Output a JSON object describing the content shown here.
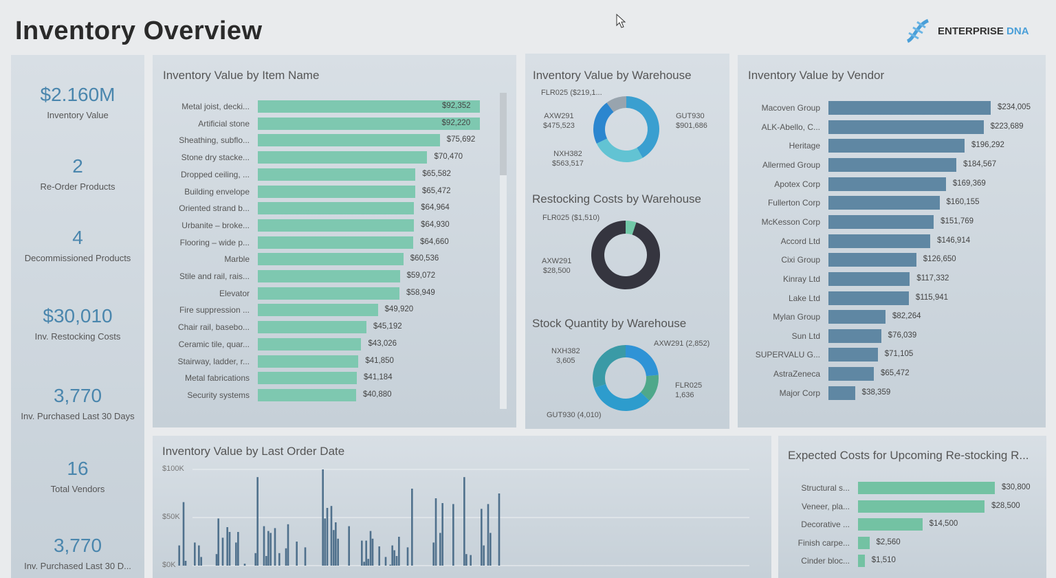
{
  "header": {
    "title": "Inventory Overview",
    "logo_text_1": "ENTERPRISE",
    "logo_text_2": "DNA"
  },
  "kpis": [
    {
      "value": "$2.160M",
      "label": "Inventory Value"
    },
    {
      "value": "2",
      "label": "Re-Order Products"
    },
    {
      "value": "4",
      "label": "Decommissioned Products"
    },
    {
      "value": "$30,010",
      "label": "Inv. Restocking Costs"
    },
    {
      "value": "3,770",
      "label": "Inv. Purchased Last 30 Days"
    },
    {
      "value": "16",
      "label": "Total Vendors"
    },
    {
      "value": "3,770",
      "label": "Inv. Purchased Last 30 D..."
    }
  ],
  "colors": {
    "item_bar": "#7ec8b0",
    "vendor_bar": "#5f87a3",
    "expected_bar": "#73c2a3",
    "date_bar": "#4f708c",
    "kpi_value": "#4a86ad"
  },
  "chart_data": [
    {
      "type": "bar",
      "orientation": "horizontal",
      "title": "Inventory Value by Item Name",
      "categories": [
        "Metal joist, decki...",
        "Artificial stone",
        "Sheathing, subflo...",
        "Stone dry stacke...",
        "Dropped ceiling, ...",
        "Building envelope",
        "Oriented strand b...",
        "Urbanite – broke...",
        "Flooring – wide p...",
        "Marble",
        "Stile and rail, rais...",
        "Elevator",
        "Fire suppression ...",
        "Chair rail, basebo...",
        "Ceramic tile, quar...",
        "Stairway, ladder, r...",
        "Metal fabrications",
        "Security systems"
      ],
      "values": [
        92352,
        92220,
        75692,
        70470,
        65582,
        65472,
        64964,
        64930,
        64660,
        60536,
        59072,
        58949,
        49920,
        45192,
        43026,
        41850,
        41184,
        40880
      ],
      "value_labels": [
        "$92,352",
        "$92,220",
        "$75,692",
        "$70,470",
        "$65,582",
        "$65,472",
        "$64,964",
        "$64,930",
        "$64,660",
        "$60,536",
        "$59,072",
        "$58,949",
        "$49,920",
        "$45,192",
        "$43,026",
        "$41,850",
        "$41,184",
        "$40,880"
      ]
    },
    {
      "type": "pie",
      "donut": true,
      "title": "Inventory Value by Warehouse",
      "slices": [
        {
          "name": "GUT930",
          "value": 901686,
          "label": "GUT930\n$901,686",
          "color": "#3a9fd0"
        },
        {
          "name": "NXH382",
          "value": 563517,
          "label": "NXH382\n$563,517",
          "color": "#62c3d3"
        },
        {
          "name": "AXW291",
          "value": 475523,
          "label": "AXW291\n$475,523",
          "color": "#2b86cf"
        },
        {
          "name": "FLR025",
          "value": 219100,
          "label": "FLR025 ($219,1...",
          "color": "#98a4ae"
        }
      ]
    },
    {
      "type": "pie",
      "donut": true,
      "title": "Restocking Costs by Warehouse",
      "slices": [
        {
          "name": "FLR025",
          "value": 1510,
          "label": "FLR025 ($1,510)",
          "color": "#72c9a8"
        },
        {
          "name": "AXW291",
          "value": 28500,
          "label": "AXW291\n$28,500",
          "color": "#35353f"
        }
      ]
    },
    {
      "type": "pie",
      "donut": true,
      "title": "Stock Quantity by Warehouse",
      "slices": [
        {
          "name": "AXW291",
          "value": 2852,
          "label": "AXW291 (2,852)",
          "color": "#2f93d6"
        },
        {
          "name": "FLR025",
          "value": 1636,
          "label": "FLR025\n1,636",
          "color": "#4fa88a"
        },
        {
          "name": "GUT930",
          "value": 4010,
          "label": "GUT930 (4,010)",
          "color": "#2d9ccd"
        },
        {
          "name": "NXH382",
          "value": 3605,
          "label": "NXH382\n3,605",
          "color": "#3a9aa6"
        }
      ]
    },
    {
      "type": "bar",
      "orientation": "horizontal",
      "title": "Inventory Value by Vendor",
      "categories": [
        "Macoven Group",
        "ALK-Abello, C...",
        "Heritage",
        "Allermed Group",
        "Apotex Corp",
        "Fullerton Corp",
        "McKesson Corp",
        "Accord Ltd",
        "Cixi Group",
        "Kinray Ltd",
        "Lake Ltd",
        "Mylan Group",
        "Sun Ltd",
        "SUPERVALU G...",
        "AstraZeneca",
        "Major Corp"
      ],
      "values": [
        234005,
        223689,
        196292,
        184567,
        169369,
        160155,
        151769,
        146914,
        126650,
        117332,
        115941,
        82264,
        76039,
        71105,
        65472,
        38359
      ],
      "value_labels": [
        "$234,005",
        "$223,689",
        "$196,292",
        "$184,567",
        "$169,369",
        "$160,155",
        "$151,769",
        "$146,914",
        "$126,650",
        "$117,332",
        "$115,941",
        "$82,264",
        "$76,039",
        "$71,105",
        "$65,472",
        "$38,359"
      ]
    },
    {
      "type": "bar",
      "orientation": "vertical",
      "title": "Inventory Value by Last Order Date",
      "y_ticks": [
        "$0K",
        "$50K",
        "$100K"
      ],
      "ylim": [
        0,
        100000
      ],
      "grid": true,
      "values": [
        21000,
        66000,
        5000,
        24000,
        21000,
        9000,
        12000,
        49000,
        29000,
        40000,
        35000,
        24000,
        35000,
        2000,
        13000,
        92000,
        41000,
        10000,
        36000,
        34000,
        39000,
        13000,
        18000,
        43000,
        25000,
        19000,
        100000,
        49000,
        60000,
        62000,
        37000,
        45000,
        28000,
        41000,
        26000,
        4000,
        26000,
        7000,
        36000,
        28000,
        20000,
        9000,
        1000,
        21000,
        16000,
        10000,
        30000,
        19000,
        80000,
        24000,
        70000,
        34000,
        65000,
        64000,
        92000,
        12000,
        11000,
        59000,
        21000,
        64000,
        34000,
        75000
      ]
    },
    {
      "type": "bar",
      "orientation": "horizontal",
      "title": "Expected Costs for Upcoming Re-stocking R...",
      "categories": [
        "Structural s...",
        "Veneer, pla...",
        "Decorative ...",
        "Finish carpe...",
        "Cinder bloc..."
      ],
      "values": [
        30800,
        28500,
        14500,
        2560,
        1510
      ],
      "value_labels": [
        "$30,800",
        "$28,500",
        "$14,500",
        "$2,560",
        "$1,510"
      ]
    }
  ]
}
